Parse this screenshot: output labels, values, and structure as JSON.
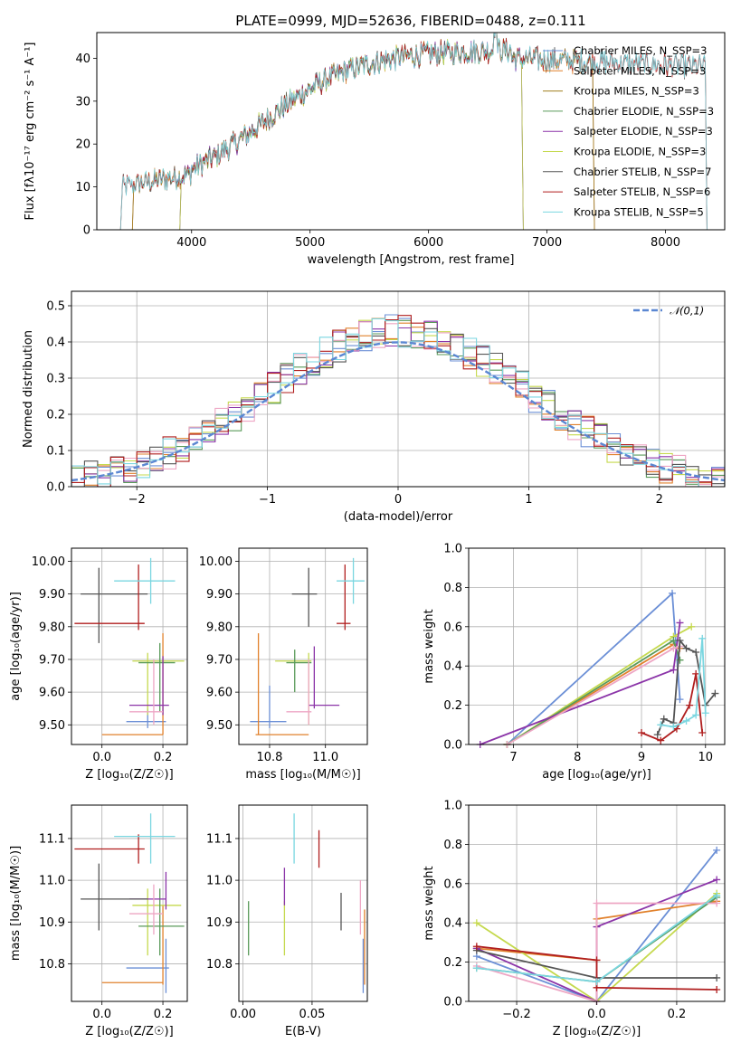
{
  "palette": [
    "#6b8fd6",
    "#e1812c",
    "#c5d94e",
    "#5a9a5a",
    "#8b34a8",
    "#eea6c4",
    "#555555",
    "#b01e1e",
    "#7ad6e0"
  ],
  "chart_data": [
    {
      "type": "line",
      "title": "PLATE=0999, MJD=52636, FIBERID=0488, z=0.111",
      "xlabel": "wavelength [Angstrom, rest frame]",
      "ylabel": "Flux [fλ10⁻¹⁷ erg cm⁻² s⁻¹ A⁻¹]",
      "xlim": [
        3200,
        8500
      ],
      "ylim": [
        0,
        46
      ],
      "xticks": [
        4000,
        5000,
        6000,
        7000,
        8000
      ],
      "yticks": [
        0,
        10,
        20,
        30,
        40
      ],
      "legend_position": "top-right",
      "series": [
        {
          "name": "Chabrier MILES, N_SSP=3",
          "color": "#6b8fd6",
          "range": [
            3500,
            7400
          ]
        },
        {
          "name": "Salpeter MILES, N_SSP=3",
          "color": "#e1812c",
          "range": [
            3500,
            7400
          ]
        },
        {
          "name": "Kroupa MILES, N_SSP=3",
          "color": "#a07f1e",
          "range": [
            3500,
            7400
          ]
        },
        {
          "name": "Chabrier ELODIE, N_SSP=3",
          "color": "#5a9a5a",
          "range": [
            3900,
            6800
          ]
        },
        {
          "name": "Salpeter ELODIE, N_SSP=3",
          "color": "#8b34a8",
          "range": [
            3900,
            6800
          ]
        },
        {
          "name": "Kroupa ELODIE, N_SSP=3",
          "color": "#c5d94e",
          "range": [
            3900,
            6800
          ]
        },
        {
          "name": "Chabrier STELIB, N_SSP=7",
          "color": "#555555",
          "range": [
            3400,
            8350
          ]
        },
        {
          "name": "Salpeter STELIB, N_SSP=6",
          "color": "#b01e1e",
          "range": [
            3400,
            8350
          ]
        },
        {
          "name": "Kroupa STELIB, N_SSP=5",
          "color": "#7ad6e0",
          "range": [
            3400,
            8350
          ]
        }
      ]
    },
    {
      "type": "area",
      "xlabel": "(data-model)/error",
      "ylabel": "Normed distribution",
      "xlim": [
        -2.5,
        2.5
      ],
      "ylim": [
        0,
        0.54
      ],
      "xticks": [
        -2,
        -1,
        0,
        1,
        2
      ],
      "yticks": [
        0.0,
        0.1,
        0.2,
        0.3,
        0.4,
        0.5
      ],
      "legend": "𝒩(0,1)",
      "legend_position": "top-right",
      "bin_width": 0.1,
      "description": "9 step histograms of normalized residuals with a standard normal overlay (dashed)"
    },
    {
      "type": "scatter",
      "xlabel": "Z [log₁₀(Z/Z☉)]",
      "ylabel": "age  [log₁₀(age/yr)]",
      "xlim": [
        -0.1,
        0.28
      ],
      "ylim": [
        9.44,
        10.04
      ],
      "xticks": [
        0.0,
        0.2
      ],
      "yticks": [
        9.5,
        9.6,
        9.7,
        9.8,
        9.9,
        10.0
      ],
      "points": [
        {
          "x": 0.15,
          "y": 9.51,
          "ex": [
            0.08,
            0.21
          ],
          "ey": [
            9.49,
            9.55
          ],
          "color": "#6b8fd6"
        },
        {
          "x": 0.2,
          "y": 9.47,
          "ex": [
            0.0,
            0.2
          ],
          "ey": [
            9.47,
            9.78
          ],
          "color": "#e1812c"
        },
        {
          "x": 0.15,
          "y": 9.695,
          "ex": [
            0.1,
            0.27
          ],
          "ey": [
            9.53,
            9.72
          ],
          "color": "#c5d94e"
        },
        {
          "x": 0.19,
          "y": 9.69,
          "ex": [
            0.12,
            0.24
          ],
          "ey": [
            9.54,
            9.75
          ],
          "color": "#5a9a5a"
        },
        {
          "x": 0.2,
          "y": 9.56,
          "ex": [
            0.09,
            0.22
          ],
          "ey": [
            9.53,
            9.71
          ],
          "color": "#8b34a8"
        },
        {
          "x": 0.17,
          "y": 9.54,
          "ex": [
            0.09,
            0.2
          ],
          "ey": [
            9.5,
            9.7
          ],
          "color": "#eea6c4"
        },
        {
          "x": -0.01,
          "y": 9.9,
          "ex": [
            -0.07,
            0.15
          ],
          "ey": [
            9.75,
            9.98
          ],
          "color": "#555555"
        },
        {
          "x": 0.12,
          "y": 9.81,
          "ex": [
            -0.09,
            0.14
          ],
          "ey": [
            9.79,
            9.99
          ],
          "color": "#b01e1e"
        },
        {
          "x": 0.16,
          "y": 9.94,
          "ex": [
            0.04,
            0.24
          ],
          "ey": [
            9.87,
            10.01
          ],
          "color": "#7ad6e0"
        }
      ]
    },
    {
      "type": "scatter",
      "xlabel": "mass [log₁₀(M/M☉)]",
      "ylabel": "",
      "xlim": [
        10.69,
        11.15
      ],
      "ylim": [
        9.44,
        10.04
      ],
      "xticks": [
        10.8,
        11.0
      ],
      "yticks": [
        9.5,
        9.6,
        9.7,
        9.8,
        9.9,
        10.0
      ],
      "points": [
        {
          "x": 10.8,
          "y": 9.51,
          "ex": [
            10.73,
            10.86
          ],
          "ey": [
            9.49,
            9.62
          ],
          "color": "#6b8fd6"
        },
        {
          "x": 10.76,
          "y": 9.47,
          "ex": [
            10.75,
            10.94
          ],
          "ey": [
            9.47,
            9.78
          ],
          "color": "#e1812c"
        },
        {
          "x": 10.94,
          "y": 9.695,
          "ex": [
            10.82,
            10.95
          ],
          "ey": [
            9.5,
            9.72
          ],
          "color": "#c5d94e"
        },
        {
          "x": 10.89,
          "y": 9.69,
          "ex": [
            10.86,
            10.95
          ],
          "ey": [
            9.6,
            9.73
          ],
          "color": "#5a9a5a"
        },
        {
          "x": 10.96,
          "y": 9.56,
          "ex": [
            10.94,
            11.05
          ],
          "ey": [
            9.55,
            9.74
          ],
          "color": "#8b34a8"
        },
        {
          "x": 10.94,
          "y": 9.54,
          "ex": [
            10.86,
            10.95
          ],
          "ey": [
            9.5,
            9.7
          ],
          "color": "#eea6c4"
        },
        {
          "x": 10.94,
          "y": 9.9,
          "ex": [
            10.88,
            10.97
          ],
          "ey": [
            9.8,
            9.98
          ],
          "color": "#555555"
        },
        {
          "x": 11.07,
          "y": 9.81,
          "ex": [
            11.04,
            11.09
          ],
          "ey": [
            9.79,
            9.99
          ],
          "color": "#b01e1e"
        },
        {
          "x": 11.1,
          "y": 9.94,
          "ex": [
            11.04,
            11.14
          ],
          "ey": [
            9.87,
            10.01
          ],
          "color": "#7ad6e0"
        }
      ]
    },
    {
      "type": "line",
      "xlabel": "age  [log₁₀(age/yr)]",
      "ylabel": "mass weight",
      "xlim": [
        6.3,
        10.3
      ],
      "ylim": [
        0,
        1.0
      ],
      "xticks": [
        7,
        8,
        9,
        10
      ],
      "yticks": [
        0.0,
        0.2,
        0.4,
        0.6,
        0.8,
        1.0
      ],
      "series": [
        {
          "name": "Chabrier MILES",
          "color": "#6b8fd6",
          "x": [
            6.9,
            9.48,
            9.6
          ],
          "y": [
            0.0,
            0.77,
            0.23
          ]
        },
        {
          "name": "Salpeter MILES",
          "color": "#e1812c",
          "x": [
            6.9,
            9.5,
            9.6
          ],
          "y": [
            0.0,
            0.51,
            0.49
          ]
        },
        {
          "name": "Kroupa ELODIE",
          "color": "#c5d94e",
          "x": [
            6.9,
            9.5,
            9.78
          ],
          "y": [
            0.0,
            0.55,
            0.6
          ]
        },
        {
          "name": "Chabrier ELODIE",
          "color": "#5a9a5a",
          "x": [
            6.9,
            9.5,
            9.6
          ],
          "y": [
            0.0,
            0.53,
            0.43
          ]
        },
        {
          "name": "Salpeter ELODIE",
          "color": "#8b34a8",
          "x": [
            6.48,
            9.5,
            9.6
          ],
          "y": [
            0.0,
            0.38,
            0.62
          ]
        },
        {
          "name": "Kroupa MILES",
          "color": "#eea6c4",
          "x": [
            6.9,
            9.5,
            9.6
          ],
          "y": [
            0.0,
            0.49,
            0.5
          ]
        },
        {
          "name": "Chabrier STELIB",
          "color": "#555555",
          "x": [
            9.25,
            9.35,
            9.5,
            9.6,
            9.7,
            9.85,
            10.0,
            10.15
          ],
          "y": [
            0.05,
            0.13,
            0.11,
            0.53,
            0.49,
            0.47,
            0.2,
            0.26
          ]
        },
        {
          "name": "Salpeter STELIB",
          "color": "#b01e1e",
          "x": [
            9.0,
            9.3,
            9.55,
            9.75,
            9.85,
            9.95
          ],
          "y": [
            0.06,
            0.02,
            0.08,
            0.2,
            0.36,
            0.06
          ]
        },
        {
          "name": "Kroupa STELIB",
          "color": "#7ad6e0",
          "x": [
            9.3,
            9.5,
            9.7,
            9.85,
            9.95,
            10.0
          ],
          "y": [
            0.1,
            0.09,
            0.12,
            0.15,
            0.54,
            0.16
          ]
        }
      ]
    },
    {
      "type": "scatter",
      "xlabel": "Z [log₁₀(Z/Z☉)]",
      "ylabel": "mass [log₁₀(M/M☉)]",
      "xlim": [
        -0.1,
        0.28
      ],
      "ylim": [
        10.71,
        11.18
      ],
      "xticks": [
        0.0,
        0.2
      ],
      "yticks": [
        10.8,
        10.9,
        11.0,
        11.1
      ],
      "points": [
        {
          "x": 0.21,
          "y": 10.79,
          "ex": [
            0.08,
            0.22
          ],
          "ey": [
            10.73,
            10.86
          ],
          "color": "#6b8fd6"
        },
        {
          "x": 0.2,
          "y": 10.755,
          "ex": [
            0.0,
            0.2
          ],
          "ey": [
            10.75,
            10.94
          ],
          "color": "#e1812c"
        },
        {
          "x": 0.15,
          "y": 10.94,
          "ex": [
            0.1,
            0.26
          ],
          "ey": [
            10.82,
            10.98
          ],
          "color": "#c5d94e"
        },
        {
          "x": 0.19,
          "y": 10.89,
          "ex": [
            0.12,
            0.27
          ],
          "ey": [
            10.82,
            10.98
          ],
          "color": "#5a9a5a"
        },
        {
          "x": 0.21,
          "y": 10.955,
          "ex": [
            0.09,
            0.21
          ],
          "ey": [
            10.93,
            11.02
          ],
          "color": "#8b34a8"
        },
        {
          "x": 0.17,
          "y": 10.92,
          "ex": [
            0.09,
            0.2
          ],
          "ey": [
            10.87,
            10.99
          ],
          "color": "#eea6c4"
        },
        {
          "x": -0.01,
          "y": 10.955,
          "ex": [
            -0.07,
            0.15
          ],
          "ey": [
            10.88,
            11.04
          ],
          "color": "#555555"
        },
        {
          "x": 0.12,
          "y": 11.075,
          "ex": [
            -0.09,
            0.14
          ],
          "ey": [
            11.04,
            11.11
          ],
          "color": "#b01e1e"
        },
        {
          "x": 0.16,
          "y": 11.105,
          "ex": [
            0.04,
            0.24
          ],
          "ey": [
            11.04,
            11.16
          ],
          "color": "#7ad6e0"
        }
      ]
    },
    {
      "type": "scatter",
      "xlabel": "E(B-V)",
      "ylabel": "",
      "xlim": [
        -0.003,
        0.09
      ],
      "ylim": [
        10.71,
        11.18
      ],
      "xticks": [
        0.0,
        0.05
      ],
      "yticks": [
        10.8,
        10.9,
        11.0,
        11.1
      ],
      "points": [
        {
          "x": 0.087,
          "y": 10.8,
          "ey": [
            10.73,
            10.86
          ],
          "color": "#6b8fd6"
        },
        {
          "x": 0.088,
          "y": 10.84,
          "ey": [
            10.75,
            10.93
          ],
          "color": "#e1812c"
        },
        {
          "x": 0.03,
          "y": 10.88,
          "ey": [
            10.82,
            10.95
          ],
          "color": "#c5d94e"
        },
        {
          "x": 0.004,
          "y": 10.89,
          "ey": [
            10.82,
            10.95
          ],
          "color": "#5a9a5a"
        },
        {
          "x": 0.03,
          "y": 10.985,
          "ey": [
            10.94,
            11.03
          ],
          "color": "#8b34a8"
        },
        {
          "x": 0.085,
          "y": 10.935,
          "ey": [
            10.87,
            11.0
          ],
          "color": "#eea6c4"
        },
        {
          "x": 0.071,
          "y": 10.92,
          "ey": [
            10.88,
            10.97
          ],
          "color": "#555555"
        },
        {
          "x": 0.055,
          "y": 11.075,
          "ey": [
            11.03,
            11.12
          ],
          "color": "#b01e1e"
        },
        {
          "x": 0.037,
          "y": 11.1,
          "ey": [
            11.04,
            11.16
          ],
          "color": "#7ad6e0"
        }
      ]
    },
    {
      "type": "line",
      "xlabel": "Z [log₁₀(Z/Z☉)]",
      "ylabel": "mass weight",
      "xlim": [
        -0.32,
        0.32
      ],
      "ylim": [
        0,
        1.0
      ],
      "xticks": [
        -0.2,
        0.0,
        0.2
      ],
      "yticks": [
        0.0,
        0.2,
        0.4,
        0.6,
        0.8,
        1.0
      ],
      "series": [
        {
          "name": "Chabrier MILES",
          "color": "#6b8fd6",
          "x": [
            -0.3,
            0.0,
            0.3
          ],
          "y": [
            0.23,
            0.0,
            0.77
          ]
        },
        {
          "name": "Salpeter MILES",
          "color": "#e1812c",
          "x": [
            -0.3,
            0.0,
            0.0,
            0.3
          ],
          "y": [
            0.27,
            0.21,
            0.42,
            0.51
          ]
        },
        {
          "name": "Kroupa ELODIE",
          "color": "#c5d94e",
          "x": [
            -0.3,
            0.0,
            0.3
          ],
          "y": [
            0.4,
            0.0,
            0.55
          ]
        },
        {
          "name": "Chabrier ELODIE",
          "color": "#5a9a5a",
          "x": [
            -0.3,
            0.0,
            0.3
          ],
          "y": [
            0.17,
            0.1,
            0.53
          ]
        },
        {
          "name": "Salpeter ELODIE",
          "color": "#8b34a8",
          "x": [
            -0.3,
            0.0,
            0.0,
            0.3
          ],
          "y": [
            0.27,
            0.0,
            0.38,
            0.62
          ]
        },
        {
          "name": "Kroupa MILES",
          "color": "#eea6c4",
          "x": [
            -0.3,
            0.0,
            0.0,
            0.3
          ],
          "y": [
            0.18,
            0.0,
            0.5,
            0.5
          ]
        },
        {
          "name": "Chabrier STELIB",
          "color": "#555555",
          "x": [
            -0.3,
            0.0,
            0.3
          ],
          "y": [
            0.26,
            0.12,
            0.12
          ]
        },
        {
          "name": "Salpeter STELIB",
          "color": "#b01e1e",
          "x": [
            -0.3,
            0.0,
            0.0,
            0.3
          ],
          "y": [
            0.28,
            0.21,
            0.07,
            0.06
          ]
        },
        {
          "name": "Kroupa STELIB",
          "color": "#7ad6e0",
          "x": [
            -0.3,
            0.0,
            0.3
          ],
          "y": [
            0.17,
            0.1,
            0.54
          ]
        }
      ]
    }
  ]
}
